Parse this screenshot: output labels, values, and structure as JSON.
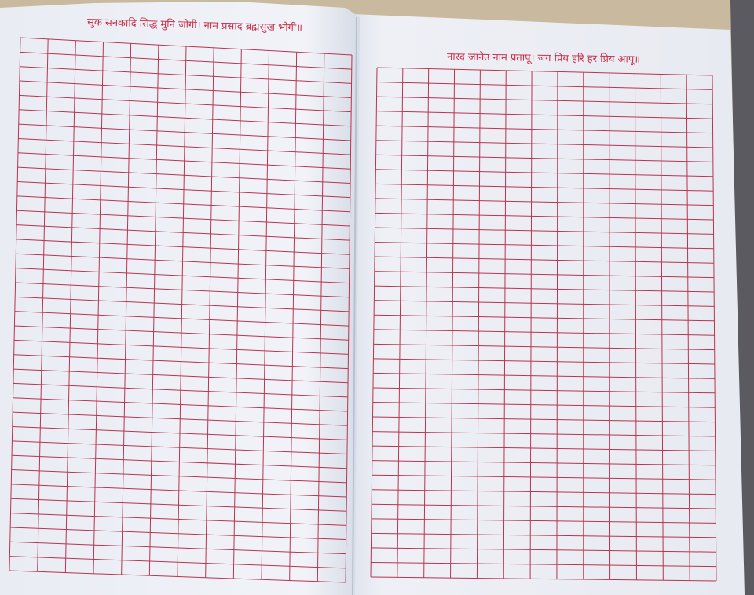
{
  "left_page": {
    "heading": "सुक सनकादि सिद्ध मुनि जोगी। नाम प्रसाद ब्रह्मसुख भोगी॥"
  },
  "right_page": {
    "heading": "नारद जानेउ नाम प्रतापू। जग प्रिय हरि हर प्रिय आपू॥"
  }
}
